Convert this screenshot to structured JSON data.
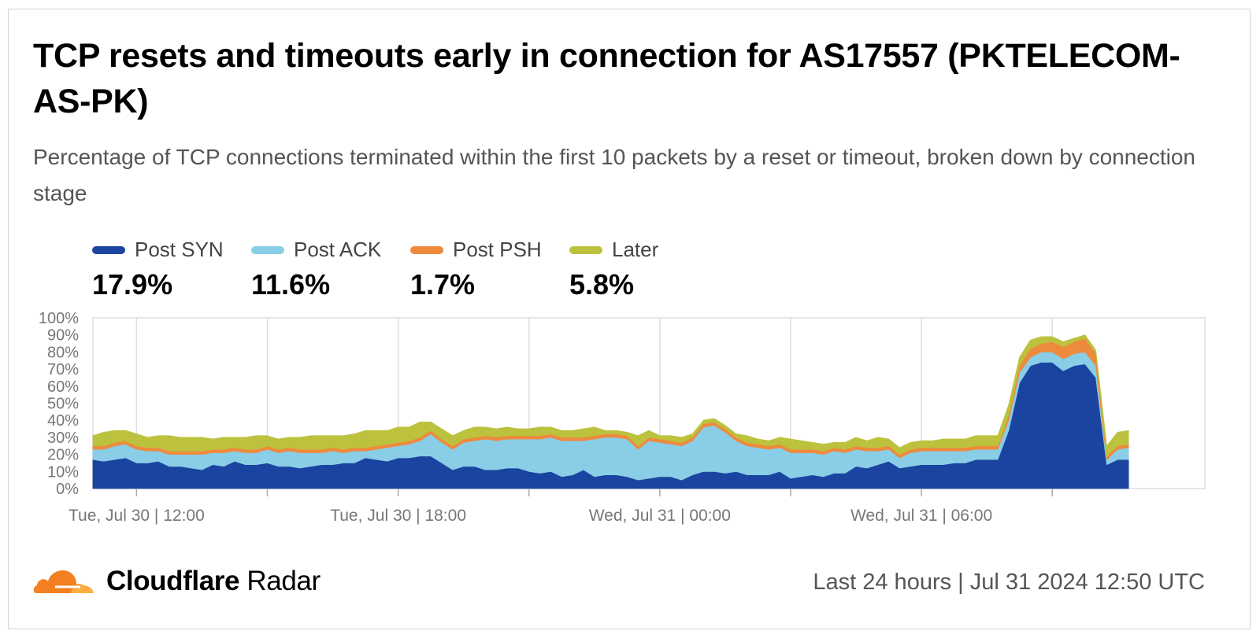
{
  "title": "TCP resets and timeouts early in connection for AS17557 (PKTELECOM-AS-PK)",
  "subtitle": "Percentage of TCP connections terminated within the first 10 packets by a reset or timeout, broken down by connection stage",
  "legend": [
    {
      "label": "Post SYN",
      "value": "17.9%",
      "color": "#1a44a0"
    },
    {
      "label": "Post ACK",
      "value": "11.6%",
      "color": "#8acde6"
    },
    {
      "label": "Post PSH",
      "value": "1.7%",
      "color": "#ee8a3e"
    },
    {
      "label": "Later",
      "value": "5.8%",
      "color": "#bcc23d"
    }
  ],
  "footer": {
    "brand_bold": "Cloudflare",
    "brand_light": "Radar",
    "timestamp": "Last 24 hours | Jul 31 2024 12:50 UTC"
  },
  "chart_data": {
    "type": "area",
    "stacked": true,
    "y_unit": "%",
    "ylim": [
      0,
      100
    ],
    "y_ticks": [
      "0%",
      "10%",
      "20%",
      "30%",
      "40%",
      "50%",
      "60%",
      "70%",
      "80%",
      "90%",
      "100%"
    ],
    "x_start": "Tue, Jul 30 | 11:00",
    "x_end": "Wed, Jul 31 | 12:30",
    "x_step_minutes": 15,
    "x_ticks": [
      {
        "time": "Tue, Jul 30 | 12:00",
        "label": "Tue, Jul 30 | 12:00"
      },
      {
        "time": "Tue, Jul 30 | 15:00",
        "label": ""
      },
      {
        "time": "Tue, Jul 30 | 18:00",
        "label": "Tue, Jul 30 | 18:00"
      },
      {
        "time": "Tue, Jul 30 | 21:00",
        "label": ""
      },
      {
        "time": "Wed, Jul 31 | 00:00",
        "label": "Wed, Jul 31 | 00:00"
      },
      {
        "time": "Wed, Jul 31 | 03:00",
        "label": ""
      },
      {
        "time": "Wed, Jul 31 | 06:00",
        "label": "Wed, Jul 31 | 06:00"
      },
      {
        "time": "Wed, Jul 31 | 09:00",
        "label": ""
      }
    ],
    "grid": true,
    "legend_position": "top",
    "series": [
      {
        "name": "Post SYN",
        "color": "#1a44a0",
        "values": [
          17,
          16,
          17,
          18,
          15,
          15,
          16,
          13,
          13,
          12,
          11,
          14,
          13,
          16,
          14,
          14,
          15,
          13,
          13,
          12,
          13,
          14,
          14,
          15,
          15,
          18,
          17,
          16,
          18,
          18,
          19,
          19,
          15,
          11,
          13,
          13,
          11,
          11,
          12,
          12,
          10,
          9,
          10,
          7,
          8,
          11,
          7,
          8,
          8,
          7,
          5,
          6,
          7,
          7,
          5,
          8,
          10,
          10,
          9,
          10,
          8,
          8,
          8,
          10,
          6,
          7,
          8,
          7,
          9,
          9,
          13,
          12,
          14,
          16,
          12,
          13,
          14,
          14,
          14,
          15,
          15,
          17,
          17,
          17,
          34,
          62,
          72,
          74,
          74,
          69,
          72,
          73,
          65,
          14,
          17,
          17
        ]
      },
      {
        "name": "Post ACK",
        "color": "#8acde6",
        "values": [
          6,
          7,
          8,
          8,
          8,
          7,
          6,
          7,
          7,
          8,
          9,
          7,
          8,
          6,
          7,
          7,
          8,
          8,
          9,
          9,
          8,
          7,
          8,
          6,
          7,
          4,
          6,
          8,
          7,
          8,
          9,
          13,
          12,
          12,
          14,
          15,
          18,
          17,
          17,
          17,
          19,
          20,
          20,
          21,
          20,
          17,
          22,
          22,
          22,
          22,
          18,
          22,
          20,
          19,
          20,
          20,
          26,
          27,
          24,
          18,
          17,
          16,
          15,
          14,
          15,
          14,
          13,
          13,
          13,
          12,
          10,
          10,
          8,
          7,
          6,
          8,
          8,
          8,
          8,
          7,
          7,
          6,
          6,
          6,
          6,
          6,
          5,
          6,
          6,
          7,
          7,
          7,
          7,
          3,
          6,
          7
        ]
      },
      {
        "name": "Post PSH",
        "color": "#ee8a3e",
        "values": [
          2,
          2,
          2,
          2,
          2,
          2,
          2,
          2,
          2,
          2,
          2,
          2,
          2,
          2,
          2,
          2,
          2,
          2,
          2,
          2,
          2,
          2,
          2,
          2,
          2,
          2,
          2,
          2,
          2,
          2,
          2,
          2,
          2,
          2,
          2,
          2,
          2,
          2,
          2,
          2,
          2,
          2,
          2,
          2,
          2,
          2,
          2,
          2,
          2,
          2,
          2,
          2,
          2,
          2,
          2,
          2,
          2,
          2,
          2,
          2,
          2,
          2,
          2,
          2,
          2,
          2,
          2,
          2,
          2,
          2,
          2,
          2,
          2,
          2,
          2,
          2,
          2,
          2,
          2,
          2,
          2,
          2,
          2,
          2,
          3,
          4,
          5,
          5,
          6,
          7,
          7,
          8,
          7,
          2,
          2,
          2
        ]
      },
      {
        "name": "Later",
        "color": "#bcc23d",
        "values": [
          6,
          8,
          7,
          6,
          7,
          6,
          7,
          9,
          8,
          8,
          8,
          6,
          7,
          6,
          7,
          8,
          6,
          6,
          6,
          7,
          8,
          8,
          7,
          8,
          8,
          10,
          9,
          8,
          9,
          8,
          9,
          5,
          6,
          6,
          5,
          6,
          5,
          5,
          5,
          4,
          4,
          5,
          4,
          4,
          4,
          5,
          5,
          2,
          2,
          2,
          6,
          4,
          2,
          3,
          3,
          2,
          2,
          2,
          2,
          2,
          4,
          3,
          3,
          4,
          6,
          5,
          4,
          4,
          3,
          4,
          5,
          4,
          6,
          4,
          4,
          4,
          4,
          4,
          5,
          5,
          5,
          6,
          6,
          6,
          6,
          5,
          5,
          4,
          3,
          3,
          2,
          2,
          2,
          6,
          8,
          8
        ]
      }
    ]
  }
}
